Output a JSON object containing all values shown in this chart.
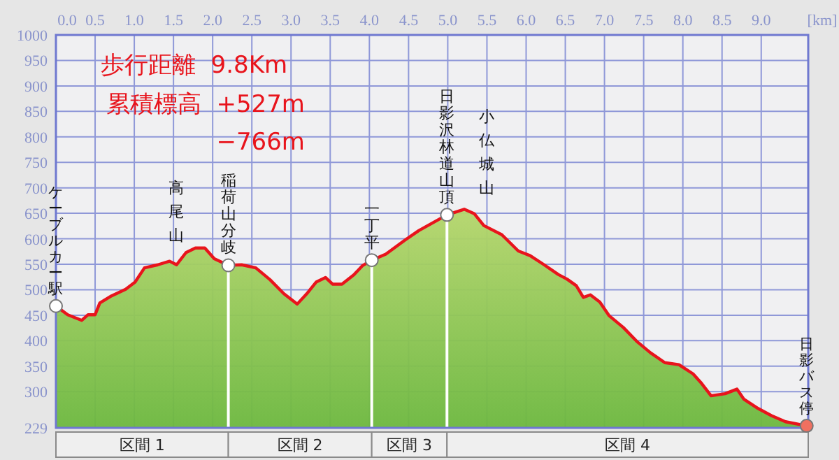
{
  "chart_data": {
    "type": "area",
    "xlabel": "[km]",
    "xlim": [
      0,
      9.6
    ],
    "ylim": [
      229,
      1000
    ],
    "xticks": [
      {
        "value": 0,
        "label": "0.0"
      },
      {
        "value": 0.5,
        "label": "0.5"
      },
      {
        "value": 1,
        "label": "1.0"
      },
      {
        "value": 1.5,
        "label": "1.5"
      },
      {
        "value": 2,
        "label": "2.0"
      },
      {
        "value": 2.5,
        "label": "2.5"
      },
      {
        "value": 3,
        "label": "3.0"
      },
      {
        "value": 3.5,
        "label": "3.5"
      },
      {
        "value": 4,
        "label": "4.0"
      },
      {
        "value": 4.5,
        "label": "4.5"
      },
      {
        "value": 5,
        "label": "5.0"
      },
      {
        "value": 5.5,
        "label": "5.5"
      },
      {
        "value": 6,
        "label": "6.0"
      },
      {
        "value": 6.5,
        "label": "6.5"
      },
      {
        "value": 7,
        "label": "7.0"
      },
      {
        "value": 7.5,
        "label": "7.5"
      },
      {
        "value": 8,
        "label": "8.0"
      },
      {
        "value": 8.5,
        "label": "8.5"
      },
      {
        "value": 9,
        "label": "9.0"
      }
    ],
    "yticks": [
      229,
      300,
      350,
      400,
      450,
      500,
      550,
      600,
      650,
      700,
      750,
      800,
      850,
      900,
      950,
      1000
    ],
    "grid": true,
    "series": [
      {
        "color": "#e8141c",
        "x": [
          0,
          0.15,
          0.33,
          0.41,
          0.5,
          0.56,
          0.71,
          0.89,
          1.01,
          1.13,
          1.3,
          1.45,
          1.54,
          1.66,
          1.78,
          1.9,
          2.02,
          2.2,
          2.37,
          2.55,
          2.73,
          2.91,
          3.08,
          3.2,
          3.32,
          3.44,
          3.53,
          3.65,
          3.8,
          3.91,
          4.03,
          4.21,
          4.45,
          4.63,
          4.99,
          5.21,
          5.34,
          5.46,
          5.69,
          5.9,
          6.05,
          6.23,
          6.41,
          6.52,
          6.64,
          6.73,
          6.82,
          6.94,
          7.06,
          7.24,
          7.41,
          7.59,
          7.77,
          7.95,
          8.13,
          8.24,
          8.36,
          8.54,
          8.69,
          8.78,
          8.96,
          9.13,
          9.31,
          9.58
        ],
        "values": [
          468,
          451,
          440,
          451,
          451,
          474,
          488,
          501,
          515,
          543,
          549,
          556,
          549,
          573,
          582,
          582,
          561,
          548,
          549,
          543,
          520,
          492,
          472,
          492,
          515,
          524,
          511,
          511,
          529,
          547,
          558,
          570,
          597,
          616,
          647,
          658,
          649,
          626,
          608,
          576,
          567,
          549,
          530,
          521,
          508,
          485,
          490,
          476,
          449,
          426,
          399,
          376,
          357,
          353,
          335,
          316,
          292,
          296,
          305,
          285,
          267,
          253,
          241,
          233
        ]
      }
    ],
    "ref_lines": [
      {
        "axis": "x",
        "value": 2.2,
        "label": "稲荷山分岐",
        "color": "#ffffff"
      },
      {
        "axis": "x",
        "value": 4.03,
        "label": "一丁平",
        "color": "#ffffff"
      },
      {
        "axis": "x",
        "value": 4.99,
        "label": "日影沢林道山頂",
        "color": "#ffffff"
      }
    ],
    "annotations": [
      "歩行距離  9.8Km",
      "累積標高  +527m",
      "−766m",
      "高尾山",
      "小仏城山",
      "区間 1",
      "区間 2",
      "区間 3",
      "区間 4",
      {
        "text": "ケーブルカー駅",
        "x": 0,
        "y": 468
      },
      {
        "text": "日影バス停",
        "x": 9.58,
        "y": 233
      }
    ]
  }
}
